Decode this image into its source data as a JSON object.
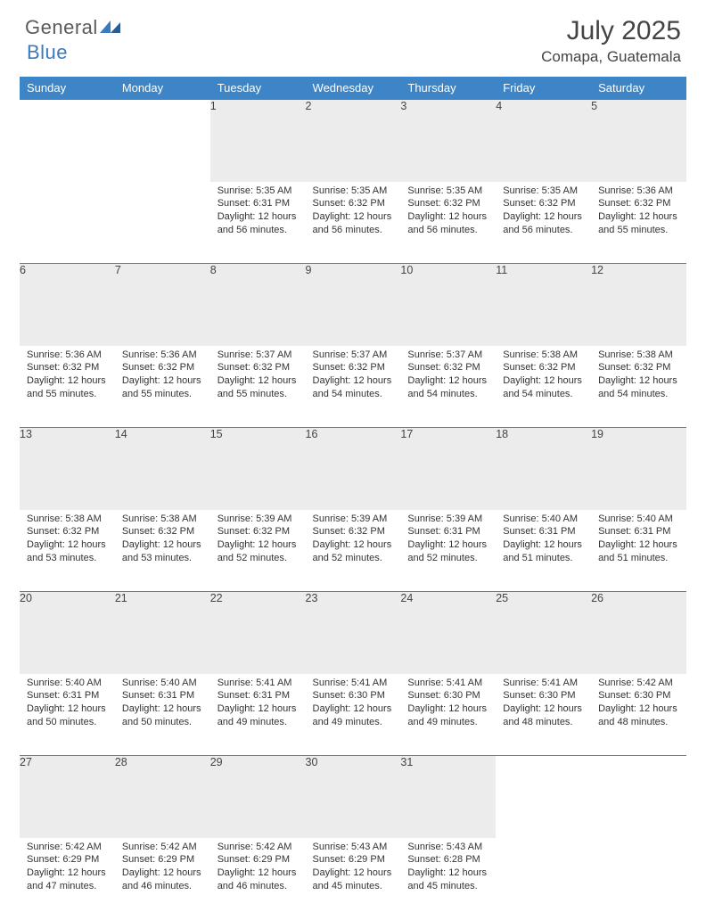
{
  "logo": {
    "word1": "General",
    "word2": "Blue"
  },
  "title": "July 2025",
  "location": "Comapa, Guatemala",
  "colors": {
    "header_bg": "#3d85c6",
    "header_text": "#ffffff",
    "row_divider": "#3d85c6",
    "daynum_bg": "#ececec",
    "body_text": "#333333",
    "logo_gray": "#5b5b5b",
    "logo_blue": "#3a7bbf",
    "page_bg": "#ffffff"
  },
  "typography": {
    "title_fontsize": 30,
    "location_fontsize": 17,
    "weekday_fontsize": 13,
    "daynum_fontsize": 12.5,
    "cell_fontsize": 11
  },
  "weekdays": [
    "Sunday",
    "Monday",
    "Tuesday",
    "Wednesday",
    "Thursday",
    "Friday",
    "Saturday"
  ],
  "weeks": [
    [
      null,
      null,
      {
        "n": "1",
        "sunrise": "5:35 AM",
        "sunset": "6:31 PM",
        "daylight": "12 hours and 56 minutes."
      },
      {
        "n": "2",
        "sunrise": "5:35 AM",
        "sunset": "6:32 PM",
        "daylight": "12 hours and 56 minutes."
      },
      {
        "n": "3",
        "sunrise": "5:35 AM",
        "sunset": "6:32 PM",
        "daylight": "12 hours and 56 minutes."
      },
      {
        "n": "4",
        "sunrise": "5:35 AM",
        "sunset": "6:32 PM",
        "daylight": "12 hours and 56 minutes."
      },
      {
        "n": "5",
        "sunrise": "5:36 AM",
        "sunset": "6:32 PM",
        "daylight": "12 hours and 55 minutes."
      }
    ],
    [
      {
        "n": "6",
        "sunrise": "5:36 AM",
        "sunset": "6:32 PM",
        "daylight": "12 hours and 55 minutes."
      },
      {
        "n": "7",
        "sunrise": "5:36 AM",
        "sunset": "6:32 PM",
        "daylight": "12 hours and 55 minutes."
      },
      {
        "n": "8",
        "sunrise": "5:37 AM",
        "sunset": "6:32 PM",
        "daylight": "12 hours and 55 minutes."
      },
      {
        "n": "9",
        "sunrise": "5:37 AM",
        "sunset": "6:32 PM",
        "daylight": "12 hours and 54 minutes."
      },
      {
        "n": "10",
        "sunrise": "5:37 AM",
        "sunset": "6:32 PM",
        "daylight": "12 hours and 54 minutes."
      },
      {
        "n": "11",
        "sunrise": "5:38 AM",
        "sunset": "6:32 PM",
        "daylight": "12 hours and 54 minutes."
      },
      {
        "n": "12",
        "sunrise": "5:38 AM",
        "sunset": "6:32 PM",
        "daylight": "12 hours and 54 minutes."
      }
    ],
    [
      {
        "n": "13",
        "sunrise": "5:38 AM",
        "sunset": "6:32 PM",
        "daylight": "12 hours and 53 minutes."
      },
      {
        "n": "14",
        "sunrise": "5:38 AM",
        "sunset": "6:32 PM",
        "daylight": "12 hours and 53 minutes."
      },
      {
        "n": "15",
        "sunrise": "5:39 AM",
        "sunset": "6:32 PM",
        "daylight": "12 hours and 52 minutes."
      },
      {
        "n": "16",
        "sunrise": "5:39 AM",
        "sunset": "6:32 PM",
        "daylight": "12 hours and 52 minutes."
      },
      {
        "n": "17",
        "sunrise": "5:39 AM",
        "sunset": "6:31 PM",
        "daylight": "12 hours and 52 minutes."
      },
      {
        "n": "18",
        "sunrise": "5:40 AM",
        "sunset": "6:31 PM",
        "daylight": "12 hours and 51 minutes."
      },
      {
        "n": "19",
        "sunrise": "5:40 AM",
        "sunset": "6:31 PM",
        "daylight": "12 hours and 51 minutes."
      }
    ],
    [
      {
        "n": "20",
        "sunrise": "5:40 AM",
        "sunset": "6:31 PM",
        "daylight": "12 hours and 50 minutes."
      },
      {
        "n": "21",
        "sunrise": "5:40 AM",
        "sunset": "6:31 PM",
        "daylight": "12 hours and 50 minutes."
      },
      {
        "n": "22",
        "sunrise": "5:41 AM",
        "sunset": "6:31 PM",
        "daylight": "12 hours and 49 minutes."
      },
      {
        "n": "23",
        "sunrise": "5:41 AM",
        "sunset": "6:30 PM",
        "daylight": "12 hours and 49 minutes."
      },
      {
        "n": "24",
        "sunrise": "5:41 AM",
        "sunset": "6:30 PM",
        "daylight": "12 hours and 49 minutes."
      },
      {
        "n": "25",
        "sunrise": "5:41 AM",
        "sunset": "6:30 PM",
        "daylight": "12 hours and 48 minutes."
      },
      {
        "n": "26",
        "sunrise": "5:42 AM",
        "sunset": "6:30 PM",
        "daylight": "12 hours and 48 minutes."
      }
    ],
    [
      {
        "n": "27",
        "sunrise": "5:42 AM",
        "sunset": "6:29 PM",
        "daylight": "12 hours and 47 minutes."
      },
      {
        "n": "28",
        "sunrise": "5:42 AM",
        "sunset": "6:29 PM",
        "daylight": "12 hours and 46 minutes."
      },
      {
        "n": "29",
        "sunrise": "5:42 AM",
        "sunset": "6:29 PM",
        "daylight": "12 hours and 46 minutes."
      },
      {
        "n": "30",
        "sunrise": "5:43 AM",
        "sunset": "6:29 PM",
        "daylight": "12 hours and 45 minutes."
      },
      {
        "n": "31",
        "sunrise": "5:43 AM",
        "sunset": "6:28 PM",
        "daylight": "12 hours and 45 minutes."
      },
      null,
      null
    ]
  ],
  "labels": {
    "sunrise": "Sunrise:",
    "sunset": "Sunset:",
    "daylight": "Daylight:"
  }
}
